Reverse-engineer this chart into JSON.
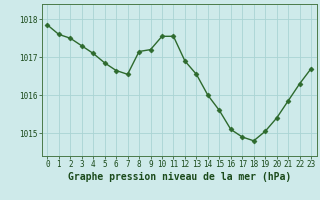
{
  "hours": [
    0,
    1,
    2,
    3,
    4,
    5,
    6,
    7,
    8,
    9,
    10,
    11,
    12,
    13,
    14,
    15,
    16,
    17,
    18,
    19,
    20,
    21,
    22,
    23
  ],
  "pressure": [
    1017.85,
    1017.6,
    1017.5,
    1017.3,
    1017.1,
    1016.85,
    1016.65,
    1016.55,
    1017.15,
    1017.2,
    1017.55,
    1017.55,
    1016.9,
    1016.55,
    1016.0,
    1015.6,
    1015.1,
    1014.9,
    1014.8,
    1015.05,
    1015.4,
    1015.85,
    1016.3,
    1016.7
  ],
  "line_color": "#2d6a2d",
  "marker": "D",
  "markersize": 2.5,
  "linewidth": 1.0,
  "bg_color": "#ceeaea",
  "grid_color": "#aad4d4",
  "xlabel": "Graphe pression niveau de la mer (hPa)",
  "xlabel_color": "#1a4a1a",
  "xlabel_fontsize": 7,
  "tick_color": "#1a4a1a",
  "tick_fontsize": 5.5,
  "yticks": [
    1015,
    1016,
    1017,
    1018
  ],
  "ylim": [
    1014.4,
    1018.4
  ],
  "xlim": [
    -0.5,
    23.5
  ],
  "spine_color": "#4a7a4a"
}
